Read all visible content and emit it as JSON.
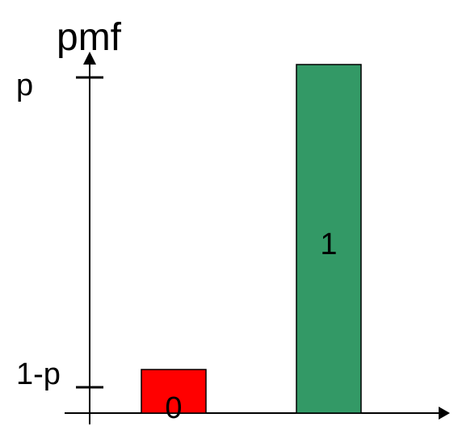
{
  "chart_data": {
    "type": "bar",
    "ylabel": "pmf",
    "categories": [
      "0",
      "1"
    ],
    "values": [
      0.125,
      1.0
    ],
    "colors": [
      "#ff0000",
      "#339966"
    ],
    "y_tick_labels": [
      "p",
      "1-p"
    ],
    "y_tick_values": [
      1.0,
      0.125
    ],
    "ylim": [
      0,
      1.0
    ],
    "grid": false,
    "legend": "none"
  }
}
